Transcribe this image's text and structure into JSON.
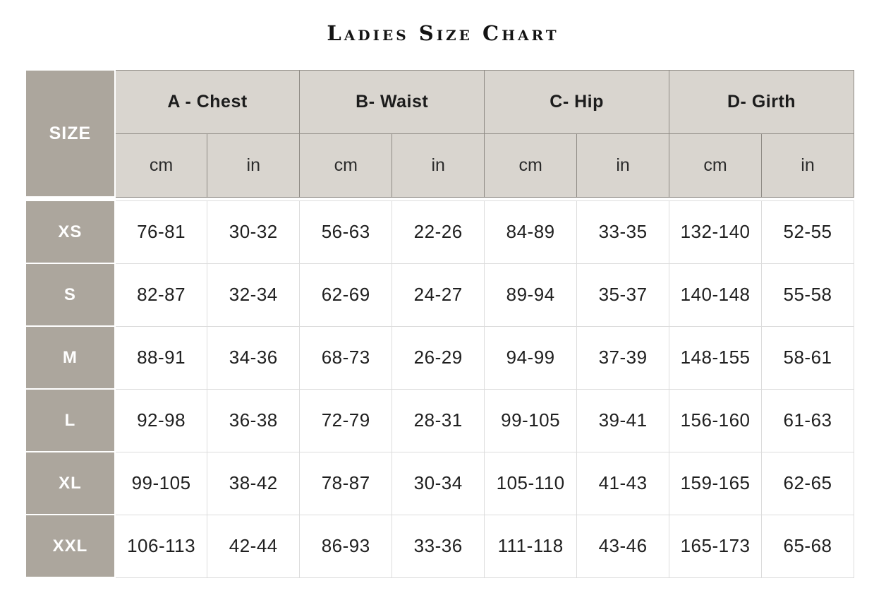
{
  "chart_data": {
    "type": "table",
    "title": "Ladies Size Chart",
    "size_column_label": "SIZE",
    "groups": [
      "A - Chest",
      "B- Waist",
      "C- Hip",
      "D- Girth"
    ],
    "units": [
      "cm",
      "in",
      "cm",
      "in",
      "cm",
      "in",
      "cm",
      "in"
    ],
    "rows": [
      {
        "size": "XS",
        "values": [
          "76-81",
          "30-32",
          "56-63",
          "22-26",
          "84-89",
          "33-35",
          "132-140",
          "52-55"
        ]
      },
      {
        "size": "S",
        "values": [
          "82-87",
          "32-34",
          "62-69",
          "24-27",
          "89-94",
          "35-37",
          "140-148",
          "55-58"
        ]
      },
      {
        "size": "M",
        "values": [
          "88-91",
          "34-36",
          "68-73",
          "26-29",
          "94-99",
          "37-39",
          "148-155",
          "58-61"
        ]
      },
      {
        "size": "L",
        "values": [
          "92-98",
          "36-38",
          "72-79",
          "28-31",
          "99-105",
          "39-41",
          "156-160",
          "61-63"
        ]
      },
      {
        "size": "XL",
        "values": [
          "99-105",
          "38-42",
          "78-87",
          "30-34",
          "105-110",
          "41-43",
          "159-165",
          "62-65"
        ]
      },
      {
        "size": "XXL",
        "values": [
          "106-113",
          "42-44",
          "86-93",
          "33-36",
          "111-118",
          "43-46",
          "165-173",
          "65-68"
        ]
      }
    ]
  },
  "colors": {
    "page-bg": "#ffffff",
    "title-text": "#141414",
    "taupe": "#aca69d",
    "header-beige": "#d9d5cf",
    "header-border": "#8f8b85",
    "body-border": "#dcdcdc",
    "data-text": "#1f1f1f",
    "white": "#ffffff"
  }
}
